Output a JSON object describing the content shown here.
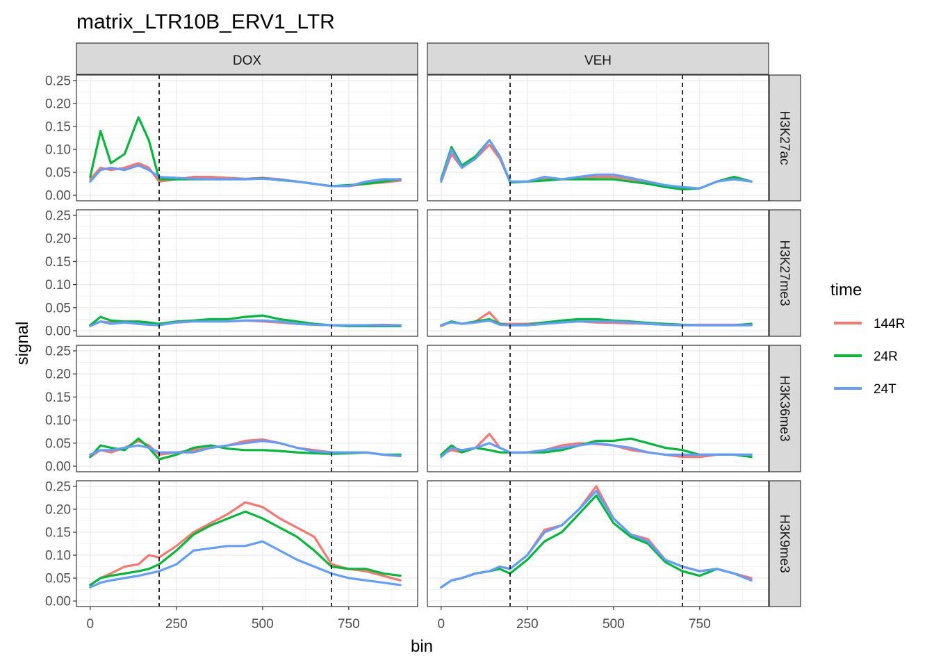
{
  "chart_data": {
    "type": "line",
    "title": "matrix_LTR10B_ERV1_LTR",
    "xlabel": "bin",
    "ylabel": "signal",
    "xlim": [
      -40,
      950
    ],
    "ylim": [
      -0.012,
      0.262
    ],
    "x_ticks": [
      0,
      250,
      500,
      750
    ],
    "x_tick_labels": [
      "0",
      "250",
      "500",
      "750"
    ],
    "y_ticks": [
      0,
      0.05,
      0.1,
      0.15,
      0.2,
      0.25
    ],
    "y_tick_labels": [
      "0.00",
      "0.05",
      "0.10",
      "0.15",
      "0.20",
      "0.25"
    ],
    "vlines": [
      200,
      700
    ],
    "grid": true,
    "columns": [
      "DOX",
      "VEH"
    ],
    "rows": [
      "H3K27ac",
      "H3K27me3",
      "H3K36me3",
      "H3K9me3"
    ],
    "legend": {
      "title": "time",
      "position": "right",
      "entries": [
        {
          "label": "144R",
          "color": "#F8766D"
        },
        {
          "label": "24R",
          "color": "#00BA38"
        },
        {
          "label": "24T",
          "color": "#619CFF"
        }
      ]
    },
    "x": [
      0,
      30,
      60,
      100,
      140,
      170,
      200,
      250,
      300,
      350,
      400,
      450,
      500,
      550,
      600,
      650,
      700,
      750,
      800,
      850,
      900
    ],
    "panels": [
      {
        "row": "H3K27ac",
        "col": "DOX",
        "series": [
          {
            "name": "144R",
            "values": [
              0.035,
              0.06,
              0.055,
              0.06,
              0.07,
              0.06,
              0.03,
              0.035,
              0.04,
              0.04,
              0.038,
              0.036,
              0.038,
              0.035,
              0.03,
              0.025,
              0.02,
              0.02,
              0.025,
              0.028,
              0.032
            ]
          },
          {
            "name": "24R",
            "values": [
              0.04,
              0.14,
              0.07,
              0.09,
              0.17,
              0.12,
              0.035,
              0.035,
              0.035,
              0.035,
              0.035,
              0.035,
              0.037,
              0.033,
              0.03,
              0.025,
              0.02,
              0.022,
              0.025,
              0.03,
              0.035
            ]
          },
          {
            "name": "24T",
            "values": [
              0.03,
              0.055,
              0.06,
              0.055,
              0.065,
              0.055,
              0.04,
              0.038,
              0.036,
              0.035,
              0.035,
              0.035,
              0.036,
              0.034,
              0.03,
              0.025,
              0.02,
              0.02,
              0.03,
              0.035,
              0.035
            ]
          }
        ]
      },
      {
        "row": "H3K27ac",
        "col": "VEH",
        "series": [
          {
            "name": "144R",
            "values": [
              0.03,
              0.09,
              0.06,
              0.08,
              0.11,
              0.08,
              0.03,
              0.03,
              0.035,
              0.035,
              0.038,
              0.04,
              0.04,
              0.035,
              0.028,
              0.02,
              0.015,
              0.015,
              0.03,
              0.04,
              0.03
            ]
          },
          {
            "name": "24R",
            "values": [
              0.035,
              0.105,
              0.065,
              0.085,
              0.12,
              0.085,
              0.028,
              0.03,
              0.032,
              0.035,
              0.035,
              0.035,
              0.035,
              0.03,
              0.025,
              0.018,
              0.013,
              0.015,
              0.03,
              0.04,
              0.03
            ]
          },
          {
            "name": "24T",
            "values": [
              0.03,
              0.1,
              0.06,
              0.08,
              0.12,
              0.085,
              0.03,
              0.03,
              0.04,
              0.035,
              0.04,
              0.045,
              0.045,
              0.038,
              0.03,
              0.022,
              0.018,
              0.015,
              0.03,
              0.035,
              0.03
            ]
          }
        ]
      },
      {
        "row": "H3K27me3",
        "col": "DOX",
        "series": [
          {
            "name": "144R",
            "values": [
              0.012,
              0.02,
              0.018,
              0.02,
              0.015,
              0.015,
              0.015,
              0.018,
              0.02,
              0.02,
              0.02,
              0.022,
              0.02,
              0.018,
              0.015,
              0.013,
              0.012,
              0.012,
              0.012,
              0.013,
              0.012
            ]
          },
          {
            "name": "24R",
            "values": [
              0.012,
              0.03,
              0.022,
              0.02,
              0.02,
              0.018,
              0.015,
              0.02,
              0.022,
              0.025,
              0.025,
              0.03,
              0.033,
              0.025,
              0.02,
              0.015,
              0.012,
              0.01,
              0.01,
              0.01,
              0.01
            ]
          },
          {
            "name": "24T",
            "values": [
              0.01,
              0.02,
              0.015,
              0.018,
              0.015,
              0.013,
              0.012,
              0.018,
              0.02,
              0.02,
              0.02,
              0.022,
              0.022,
              0.02,
              0.015,
              0.013,
              0.012,
              0.012,
              0.012,
              0.012,
              0.012
            ]
          }
        ]
      },
      {
        "row": "H3K27me3",
        "col": "VEH",
        "series": [
          {
            "name": "144R",
            "values": [
              0.01,
              0.02,
              0.015,
              0.02,
              0.04,
              0.015,
              0.015,
              0.015,
              0.018,
              0.02,
              0.02,
              0.018,
              0.017,
              0.016,
              0.015,
              0.013,
              0.012,
              0.013,
              0.013,
              0.013,
              0.013
            ]
          },
          {
            "name": "24R",
            "values": [
              0.012,
              0.02,
              0.015,
              0.02,
              0.025,
              0.015,
              0.012,
              0.013,
              0.018,
              0.022,
              0.025,
              0.025,
              0.022,
              0.02,
              0.017,
              0.015,
              0.013,
              0.012,
              0.012,
              0.012,
              0.015
            ]
          },
          {
            "name": "24T",
            "values": [
              0.012,
              0.018,
              0.015,
              0.018,
              0.022,
              0.013,
              0.012,
              0.012,
              0.015,
              0.018,
              0.02,
              0.02,
              0.02,
              0.018,
              0.015,
              0.013,
              0.012,
              0.012,
              0.012,
              0.012,
              0.012
            ]
          }
        ]
      },
      {
        "row": "H3K36me3",
        "col": "DOX",
        "series": [
          {
            "name": "144R",
            "values": [
              0.02,
              0.035,
              0.03,
              0.04,
              0.055,
              0.045,
              0.025,
              0.03,
              0.035,
              0.04,
              0.045,
              0.055,
              0.058,
              0.05,
              0.04,
              0.035,
              0.03,
              0.03,
              0.03,
              0.025,
              0.022
            ]
          },
          {
            "name": "24R",
            "values": [
              0.02,
              0.045,
              0.04,
              0.035,
              0.06,
              0.04,
              0.015,
              0.025,
              0.04,
              0.045,
              0.038,
              0.035,
              0.035,
              0.033,
              0.03,
              0.028,
              0.027,
              0.028,
              0.03,
              0.025,
              0.025
            ]
          },
          {
            "name": "24T",
            "values": [
              0.025,
              0.035,
              0.035,
              0.04,
              0.045,
              0.04,
              0.03,
              0.03,
              0.03,
              0.04,
              0.045,
              0.05,
              0.055,
              0.05,
              0.04,
              0.032,
              0.03,
              0.03,
              0.03,
              0.025,
              0.022
            ]
          }
        ]
      },
      {
        "row": "H3K36me3",
        "col": "VEH",
        "series": [
          {
            "name": "144R",
            "values": [
              0.025,
              0.035,
              0.03,
              0.04,
              0.07,
              0.04,
              0.03,
              0.03,
              0.035,
              0.045,
              0.05,
              0.048,
              0.045,
              0.035,
              0.03,
              0.025,
              0.02,
              0.02,
              0.025,
              0.025,
              0.025
            ]
          },
          {
            "name": "24R",
            "values": [
              0.025,
              0.045,
              0.03,
              0.04,
              0.035,
              0.03,
              0.03,
              0.03,
              0.03,
              0.035,
              0.045,
              0.055,
              0.055,
              0.06,
              0.05,
              0.04,
              0.035,
              0.025,
              0.025,
              0.025,
              0.02
            ]
          },
          {
            "name": "24T",
            "values": [
              0.02,
              0.04,
              0.035,
              0.04,
              0.05,
              0.04,
              0.03,
              0.03,
              0.035,
              0.04,
              0.045,
              0.05,
              0.045,
              0.04,
              0.03,
              0.025,
              0.025,
              0.025,
              0.025,
              0.025,
              0.025
            ]
          }
        ]
      },
      {
        "row": "H3K9me3",
        "col": "DOX",
        "series": [
          {
            "name": "144R",
            "values": [
              0.035,
              0.05,
              0.06,
              0.075,
              0.08,
              0.1,
              0.095,
              0.12,
              0.15,
              0.17,
              0.19,
              0.215,
              0.205,
              0.18,
              0.16,
              0.14,
              0.08,
              0.07,
              0.065,
              0.055,
              0.045
            ]
          },
          {
            "name": "24R",
            "values": [
              0.035,
              0.05,
              0.055,
              0.06,
              0.065,
              0.07,
              0.08,
              0.11,
              0.145,
              0.165,
              0.18,
              0.195,
              0.18,
              0.16,
              0.14,
              0.11,
              0.075,
              0.07,
              0.07,
              0.06,
              0.055
            ]
          },
          {
            "name": "24T",
            "values": [
              0.03,
              0.04,
              0.045,
              0.05,
              0.055,
              0.06,
              0.065,
              0.08,
              0.11,
              0.115,
              0.12,
              0.12,
              0.13,
              0.11,
              0.09,
              0.075,
              0.06,
              0.05,
              0.045,
              0.04,
              0.035
            ]
          }
        ]
      },
      {
        "row": "H3K9me3",
        "col": "VEH",
        "series": [
          {
            "name": "144R",
            "values": [
              0.03,
              0.045,
              0.05,
              0.06,
              0.065,
              0.075,
              0.07,
              0.1,
              0.155,
              0.165,
              0.2,
              0.25,
              0.18,
              0.145,
              0.135,
              0.09,
              0.075,
              0.065,
              0.07,
              0.06,
              0.05
            ]
          },
          {
            "name": "24R",
            "values": [
              0.03,
              0.045,
              0.05,
              0.06,
              0.065,
              0.07,
              0.06,
              0.09,
              0.13,
              0.15,
              0.19,
              0.23,
              0.17,
              0.14,
              0.125,
              0.085,
              0.065,
              0.055,
              0.07,
              0.06,
              0.045
            ]
          },
          {
            "name": "24T",
            "values": [
              0.03,
              0.045,
              0.05,
              0.06,
              0.065,
              0.075,
              0.07,
              0.1,
              0.15,
              0.165,
              0.2,
              0.24,
              0.18,
              0.145,
              0.13,
              0.09,
              0.075,
              0.065,
              0.07,
              0.06,
              0.045
            ]
          }
        ]
      }
    ]
  }
}
